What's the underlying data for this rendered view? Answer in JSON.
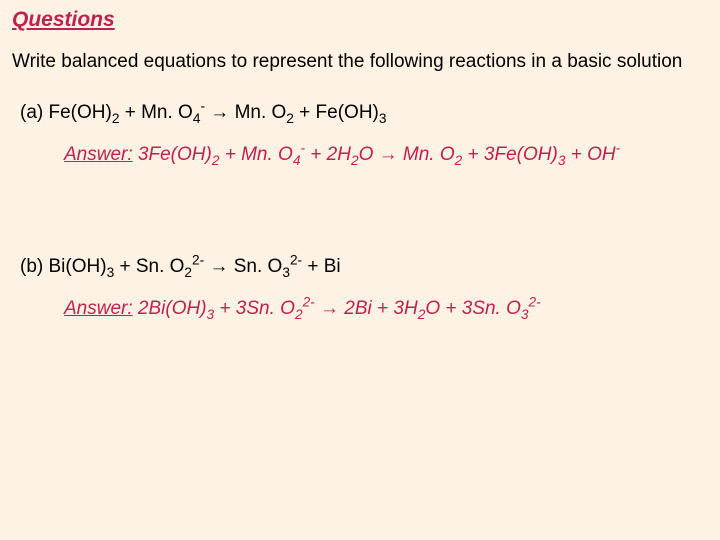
{
  "title": {
    "text": "Questions",
    "color": "#c02050",
    "fontsize": 21
  },
  "intro": "Write balanced equations to represent the following reactions in a basic solution",
  "answer_color": "#c02050",
  "background": "#fdf2e3",
  "parts": {
    "a": {
      "label": "(a) ",
      "lhs": [
        {
          "base": "Fe(OH)",
          "sub": "2"
        },
        {
          "plus": " + "
        },
        {
          "base": "Mn. O",
          "sub": "4",
          "sup": "-"
        }
      ],
      "rhs": [
        {
          "base": "Mn. O",
          "sub": "2"
        },
        {
          "plus": " + "
        },
        {
          "base": "Fe(OH)",
          "sub": "3"
        }
      ],
      "answer": {
        "label": "Answer:",
        "lhs": [
          {
            "base": "3Fe(OH)",
            "sub": "2"
          },
          {
            "plus": " + "
          },
          {
            "base": "Mn. O",
            "sub": "4",
            "sup": "-"
          },
          {
            "plus": " + "
          },
          {
            "base": "2H",
            "sub": "2",
            "tail": "O"
          }
        ],
        "rhs": [
          {
            "base": "Mn. O",
            "sub": "2"
          },
          {
            "plus": " + "
          },
          {
            "base": "3Fe(OH)",
            "sub": "3"
          },
          {
            "plus": " + "
          },
          {
            "base": "OH",
            "sup": "-"
          }
        ]
      }
    },
    "b": {
      "label": "(b) ",
      "lhs": [
        {
          "base": "Bi(OH)",
          "sub": "3"
        },
        {
          "plus": " + "
        },
        {
          "base": "Sn. O",
          "sub": "2",
          "sup": "2-"
        }
      ],
      "rhs": [
        {
          "base": "Sn. O",
          "sub": "3",
          "sup": "2-"
        },
        {
          "plus": " + "
        },
        {
          "base": "Bi"
        }
      ],
      "answer": {
        "label": "Answer:",
        "lhs": [
          {
            "base": "2Bi(OH)",
            "sub": "3"
          },
          {
            "plus": " + "
          },
          {
            "base": "3Sn. O",
            "sub": "2",
            "sup": "2-"
          }
        ],
        "rhs": [
          {
            "base": "2Bi"
          },
          {
            "plus": " + "
          },
          {
            "base": "3H",
            "sub": "2",
            "tail": "O"
          },
          {
            "plus": " + "
          },
          {
            "base": "3Sn. O",
            "sub": "3",
            "sup": "2-"
          }
        ]
      }
    }
  },
  "arrow": "→"
}
